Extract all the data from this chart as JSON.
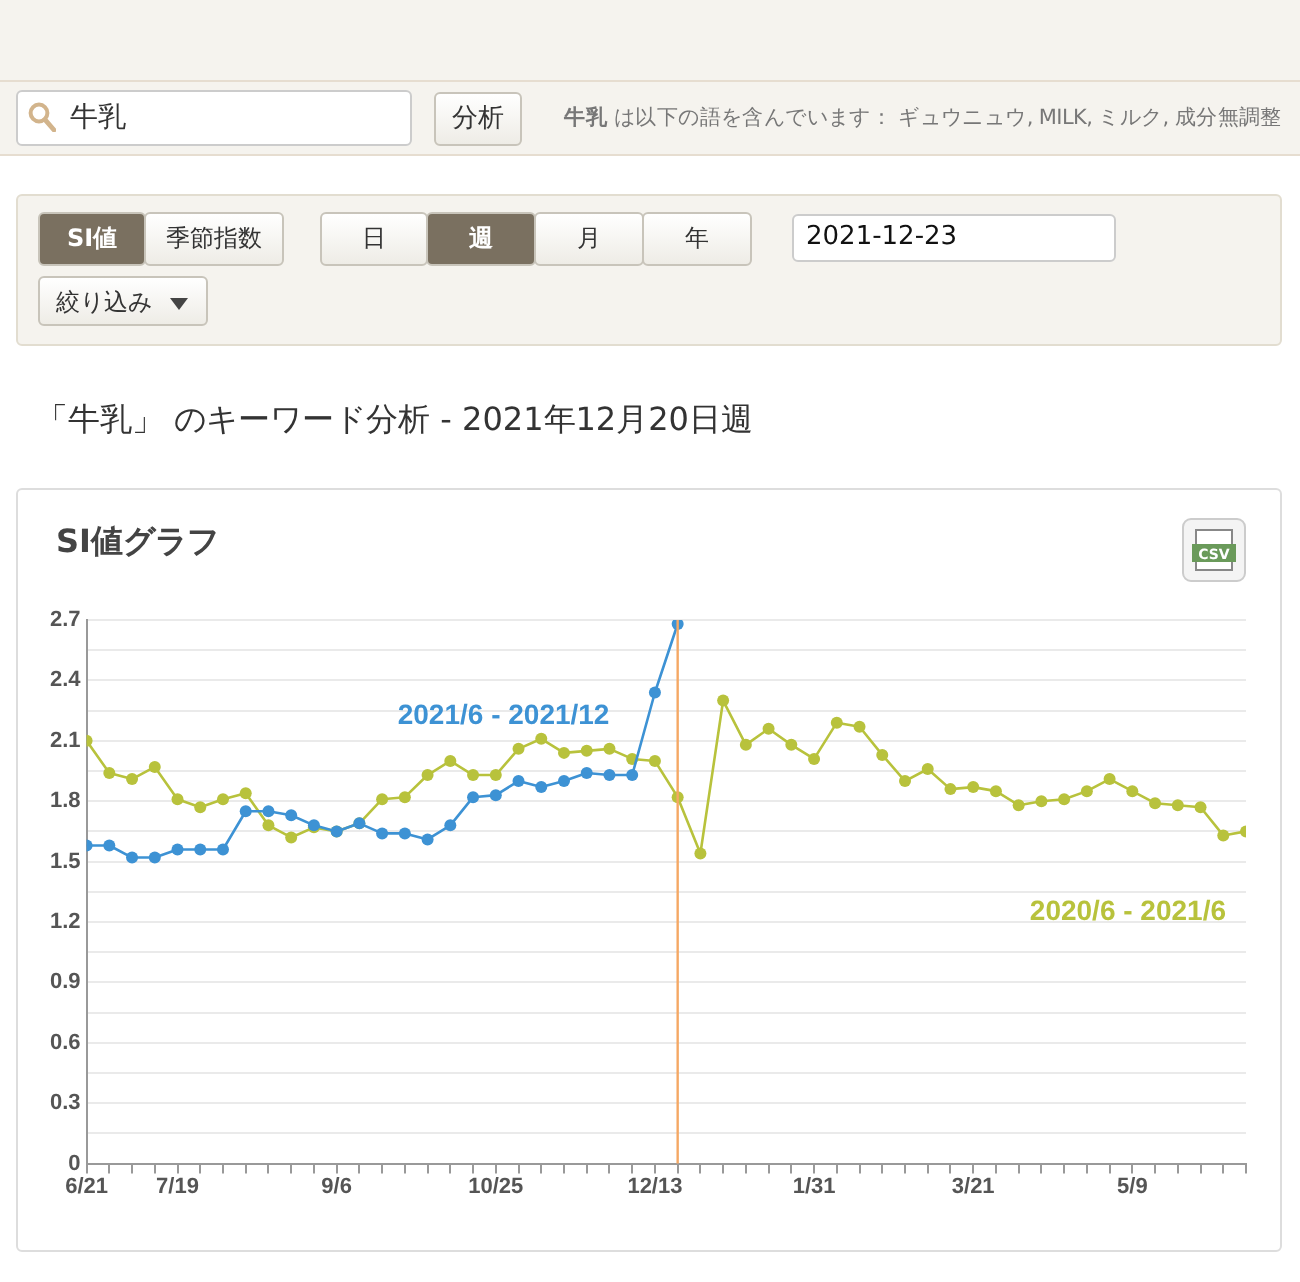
{
  "chart_data": {
    "type": "line",
    "title": "「牛乳」 のキーワード分析 - 2021年12月20日週",
    "subtitle": "SI値グラフ",
    "annotations": [
      "牛乳",
      "分析",
      "牛乳",
      "は以下の語を含んでいます： ギュウニュウ, MILK, ミルク, 成分無調整",
      "SI値",
      "季節指数",
      "日",
      "週",
      "月",
      "年",
      "2021-12-23",
      "絞り込み",
      "CSV"
    ],
    "x": [
      "2021-06-21",
      "2021-06-28",
      "2021-07-05",
      "2021-07-12",
      "2021-07-19",
      "2021-07-26",
      "2021-08-02",
      "2021-08-09",
      "2021-08-16",
      "2021-08-23",
      "2021-08-30",
      "2021-09-06",
      "2021-09-13",
      "2021-09-20",
      "2021-09-27",
      "2021-10-04",
      "2021-10-11",
      "2021-10-18",
      "2021-10-25",
      "2021-11-01",
      "2021-11-08",
      "2021-11-15",
      "2021-11-22",
      "2021-11-29",
      "2021-12-06",
      "2021-12-13",
      "2021-12-20",
      "2021-12-27",
      "2022-01-03",
      "2022-01-10",
      "2022-01-17",
      "2022-01-24",
      "2022-01-31",
      "2022-02-07",
      "2022-02-14",
      "2022-02-21",
      "2022-02-28",
      "2022-03-07",
      "2022-03-14",
      "2022-03-21",
      "2022-03-28",
      "2022-04-04",
      "2022-04-11",
      "2022-04-18",
      "2022-04-25",
      "2022-05-02",
      "2022-05-09",
      "2022-05-16",
      "2022-05-23",
      "2022-05-30",
      "2022-06-06",
      "2022-06-13"
    ],
    "series": [
      {
        "name": "2020/6 - 2021/6",
        "color": "#b8c23c",
        "values": [
          2.1,
          1.94,
          1.91,
          1.97,
          1.81,
          1.77,
          1.81,
          1.84,
          1.68,
          1.62,
          1.67,
          1.65,
          1.69,
          1.81,
          1.82,
          1.93,
          2.0,
          1.93,
          1.93,
          2.06,
          2.11,
          2.04,
          2.05,
          2.06,
          2.01,
          2.0,
          1.82,
          1.54,
          2.3,
          2.08,
          2.16,
          2.08,
          2.01,
          2.19,
          2.17,
          2.03,
          1.9,
          1.96,
          1.86,
          1.87,
          1.85,
          1.78,
          1.8,
          1.81,
          1.85,
          1.91,
          1.85,
          1.79,
          1.78,
          1.77,
          1.63,
          1.65
        ]
      },
      {
        "name": "2021/6 - 2021/12",
        "color": "#3d92d4",
        "values": [
          1.58,
          1.58,
          1.52,
          1.52,
          1.56,
          1.56,
          1.56,
          1.75,
          1.75,
          1.73,
          1.68,
          1.65,
          1.69,
          1.64,
          1.64,
          1.61,
          1.68,
          1.82,
          1.83,
          1.9,
          1.87,
          1.9,
          1.94,
          1.93,
          1.93,
          2.34,
          2.68,
          null,
          null,
          null,
          null,
          null,
          null,
          null,
          null,
          null,
          null,
          null,
          null,
          null,
          null,
          null,
          null,
          null,
          null,
          null,
          null,
          null,
          null,
          null,
          null,
          null
        ]
      }
    ],
    "xlim": [
      "2021-06-21",
      "2022-06-13"
    ],
    "xticks": [
      {
        "value": "2021-06-21",
        "label": "6/21"
      },
      {
        "value": "2021-06-28",
        "label": null
      },
      {
        "value": "2021-07-05",
        "label": null
      },
      {
        "value": "2021-07-12",
        "label": null
      },
      {
        "value": "2021-07-19",
        "label": "7/19"
      },
      {
        "value": "2021-07-26",
        "label": null
      },
      {
        "value": "2021-08-02",
        "label": null
      },
      {
        "value": "2021-08-09",
        "label": null
      },
      {
        "value": "2021-08-16",
        "label": null
      },
      {
        "value": "2021-08-23",
        "label": null
      },
      {
        "value": "2021-08-30",
        "label": null
      },
      {
        "value": "2021-09-06",
        "label": "9/6"
      },
      {
        "value": "2021-09-13",
        "label": null
      },
      {
        "value": "2021-09-20",
        "label": null
      },
      {
        "value": "2021-09-27",
        "label": null
      },
      {
        "value": "2021-10-04",
        "label": null
      },
      {
        "value": "2021-10-11",
        "label": null
      },
      {
        "value": "2021-10-18",
        "label": null
      },
      {
        "value": "2021-10-25",
        "label": "10/25"
      },
      {
        "value": "2021-11-01",
        "label": null
      },
      {
        "value": "2021-11-08",
        "label": null
      },
      {
        "value": "2021-11-15",
        "label": null
      },
      {
        "value": "2021-11-22",
        "label": null
      },
      {
        "value": "2021-11-29",
        "label": null
      },
      {
        "value": "2021-12-06",
        "label": null
      },
      {
        "value": "2021-12-13",
        "label": "12/13"
      },
      {
        "value": "2021-12-20",
        "label": null
      },
      {
        "value": "2021-12-27",
        "label": null
      },
      {
        "value": "2022-01-03",
        "label": null
      },
      {
        "value": "2022-01-10",
        "label": null
      },
      {
        "value": "2022-01-17",
        "label": null
      },
      {
        "value": "2022-01-24",
        "label": null
      },
      {
        "value": "2022-01-31",
        "label": "1/31"
      },
      {
        "value": "2022-02-07",
        "label": null
      },
      {
        "value": "2022-02-14",
        "label": null
      },
      {
        "value": "2022-02-21",
        "label": null
      },
      {
        "value": "2022-02-28",
        "label": null
      },
      {
        "value": "2022-03-07",
        "label": null
      },
      {
        "value": "2022-03-14",
        "label": null
      },
      {
        "value": "2022-03-21",
        "label": "3/21"
      },
      {
        "value": "2022-03-28",
        "label": null
      },
      {
        "value": "2022-04-04",
        "label": null
      },
      {
        "value": "2022-04-11",
        "label": null
      },
      {
        "value": "2022-04-18",
        "label": null
      },
      {
        "value": "2022-04-25",
        "label": null
      },
      {
        "value": "2022-05-02",
        "label": null
      },
      {
        "value": "2022-05-09",
        "label": "5/9"
      },
      {
        "value": "2022-05-16",
        "label": null
      },
      {
        "value": "2022-05-23",
        "label": null
      },
      {
        "value": "2022-05-30",
        "label": null
      },
      {
        "value": "2022-06-06",
        "label": null
      },
      {
        "value": "2022-06-13",
        "label": null
      }
    ],
    "ylim": [
      0,
      2.7
    ],
    "yticks": [
      0,
      {
        "value": 0.15,
        "label": null
      },
      0.3,
      {
        "value": 0.45,
        "label": null
      },
      0.6,
      {
        "value": 0.75,
        "label": null
      },
      0.9,
      {
        "value": 1.05,
        "label": null
      },
      1.2,
      {
        "value": 1.35,
        "label": null
      },
      1.5,
      {
        "value": 1.65,
        "label": null
      },
      1.8,
      {
        "value": 1.95,
        "label": null
      },
      2.1,
      {
        "value": 2.25,
        "label": null
      },
      2.4,
      {
        "value": 2.55,
        "label": null
      },
      2.7
    ],
    "ref_lines": [
      {
        "axis": "x",
        "value": "2021-12-20",
        "color": "#f5a864"
      }
    ],
    "grid": "y",
    "legend": false,
    "marker": "circle",
    "line_style": "solid"
  }
}
